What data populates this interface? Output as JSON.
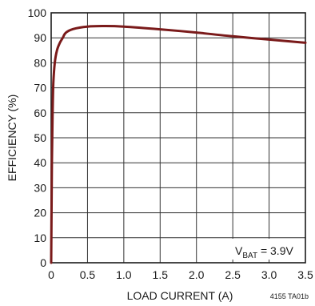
{
  "chart_data": {
    "type": "line",
    "xlabel": "LOAD CURRENT (A)",
    "ylabel": "EFFICIENCY (%)",
    "xlim": [
      0,
      3.5
    ],
    "ylim": [
      0,
      100
    ],
    "x_ticks": [
      "0",
      "0.5",
      "1.0",
      "1.5",
      "2.0",
      "2.5",
      "3.0",
      "3.5"
    ],
    "y_ticks": [
      "0",
      "10",
      "20",
      "30",
      "40",
      "50",
      "60",
      "70",
      "80",
      "90",
      "100"
    ],
    "grid": true,
    "series": [
      {
        "color": "#7a1a1a",
        "x": [
          0.0,
          0.01,
          0.02,
          0.03,
          0.05,
          0.08,
          0.12,
          0.16,
          0.2,
          0.3,
          0.5,
          0.75,
          1.0,
          1.5,
          2.0,
          2.5,
          3.0,
          3.5
        ],
        "y": [
          0,
          40,
          60,
          72,
          80,
          85,
          88,
          90,
          92,
          93.5,
          94.5,
          94.7,
          94.5,
          93.4,
          92.1,
          90.6,
          89.3,
          88.0
        ]
      }
    ],
    "annotation": {
      "prefix": "V",
      "sub": "BAT",
      "suffix": " = 3.9V"
    }
  },
  "figure_id": "4155 TA01b"
}
